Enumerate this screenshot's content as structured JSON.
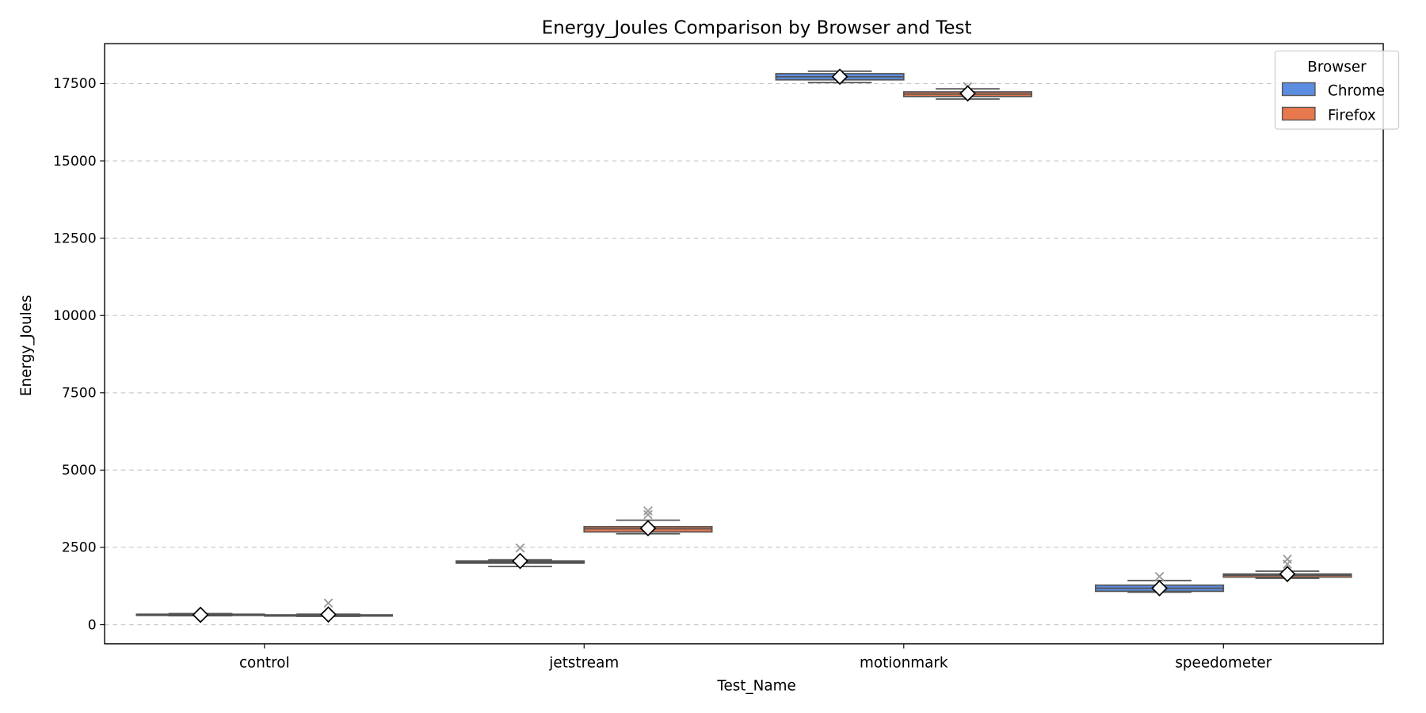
{
  "chart_data": {
    "type": "box",
    "title": "Energy_Joules Comparison by Browser and Test",
    "xlabel": "Test_Name",
    "ylabel": "Energy_Joules",
    "categories": [
      "control",
      "jetstream",
      "motionmark",
      "speedometer"
    ],
    "ylim": [
      -620,
      18790
    ],
    "yticks": [
      0,
      2500,
      5000,
      7500,
      10000,
      12500,
      15000,
      17500
    ],
    "grid": "y-dashed",
    "legend": {
      "title": "Browser",
      "placement": "top-right"
    },
    "series": [
      {
        "name": "Chrome",
        "color": "#5b8de0",
        "boxes": [
          {
            "whislo": 290,
            "q1": 300,
            "med": 320,
            "q3": 340,
            "whishi": 360,
            "mean": 320,
            "outliers": []
          },
          {
            "whislo": 1880,
            "q1": 1990,
            "med": 2020,
            "q3": 2060,
            "whishi": 2100,
            "mean": 2060,
            "outliers": [
              2480
            ]
          },
          {
            "whislo": 17530,
            "q1": 17620,
            "med": 17720,
            "q3": 17820,
            "whishi": 17900,
            "mean": 17720,
            "outliers": []
          },
          {
            "whislo": 1050,
            "q1": 1080,
            "med": 1180,
            "q3": 1280,
            "whishi": 1430,
            "mean": 1180,
            "outliers": [
              1560
            ]
          }
        ]
      },
      {
        "name": "Firefox",
        "color": "#e8784d",
        "boxes": [
          {
            "whislo": 270,
            "q1": 280,
            "med": 300,
            "q3": 320,
            "whishi": 340,
            "mean": 330,
            "outliers": [
              700
            ]
          },
          {
            "whislo": 2940,
            "q1": 3000,
            "med": 3100,
            "q3": 3170,
            "whishi": 3380,
            "mean": 3120,
            "outliers": [
              3560,
              3680
            ]
          },
          {
            "whislo": 17000,
            "q1": 17080,
            "med": 17160,
            "q3": 17230,
            "whishi": 17330,
            "mean": 17180,
            "outliers": [
              17400
            ]
          },
          {
            "whislo": 1500,
            "q1": 1540,
            "med": 1600,
            "q3": 1640,
            "whishi": 1730,
            "mean": 1640,
            "outliers": [
              1960,
              2120
            ]
          }
        ]
      }
    ]
  }
}
